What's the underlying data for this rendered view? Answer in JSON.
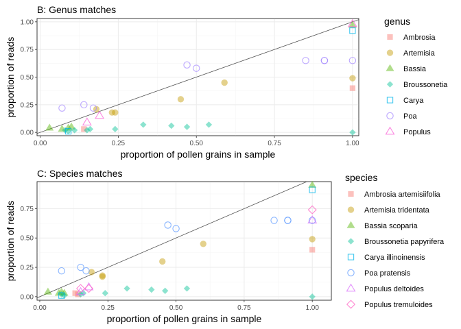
{
  "chart_data": [
    {
      "type": "scatter",
      "title": "B: Genus matches",
      "xlabel": "proportion of pollen grains in sample",
      "ylabel": "proportion of reads",
      "xlim": [
        -0.01,
        1.02
      ],
      "ylim": [
        -0.03,
        1.03
      ],
      "xticks": [
        "0.00",
        "0.25",
        "0.50",
        "0.75",
        "1.00"
      ],
      "yticks": [
        "0.00",
        "0.25",
        "0.50",
        "0.75",
        "1.00"
      ],
      "reference_line": "y = x",
      "grid": true,
      "legend_title": "genus",
      "legend_position": "right",
      "series": [
        {
          "name": "Ambrosia",
          "color": "#F8766D",
          "shape": "square-filled",
          "points": [
            [
              0.14,
              0.03
            ],
            [
              1.0,
              0.4
            ]
          ]
        },
        {
          "name": "Artemisia",
          "color": "#C49A00",
          "shape": "circle-filled",
          "points": [
            [
              0.18,
              0.21
            ],
            [
              0.24,
              0.18
            ],
            [
              0.23,
              0.18
            ],
            [
              0.45,
              0.3
            ],
            [
              0.59,
              0.45
            ],
            [
              1.0,
              0.49
            ]
          ]
        },
        {
          "name": "Bassia",
          "color": "#53B400",
          "shape": "triangle-filled",
          "points": [
            [
              0.03,
              0.04
            ],
            [
              0.07,
              0.03
            ],
            [
              0.09,
              0.04
            ],
            [
              0.1,
              0.05
            ],
            [
              1.0,
              0.97
            ]
          ]
        },
        {
          "name": "Broussonetia",
          "color": "#00C094",
          "shape": "diamond-filled",
          "points": [
            [
              0.08,
              0.02
            ],
            [
              0.09,
              0.01
            ],
            [
              0.11,
              0.02
            ],
            [
              0.15,
              0.02
            ],
            [
              0.16,
              0.03
            ],
            [
              0.24,
              0.03
            ],
            [
              0.33,
              0.07
            ],
            [
              0.42,
              0.06
            ],
            [
              0.47,
              0.05
            ],
            [
              0.54,
              0.07
            ],
            [
              1.0,
              0.0
            ]
          ]
        },
        {
          "name": "Carya",
          "color": "#00B6EB",
          "shape": "square-open",
          "points": [
            [
              0.09,
              0.01
            ],
            [
              1.0,
              0.92
            ]
          ]
        },
        {
          "name": "Poa",
          "color": "#A58AFF",
          "shape": "circle-open",
          "points": [
            [
              0.07,
              0.22
            ],
            [
              0.14,
              0.25
            ],
            [
              0.17,
              0.22
            ],
            [
              0.47,
              0.61
            ],
            [
              0.5,
              0.58
            ],
            [
              0.85,
              0.65
            ],
            [
              0.91,
              0.65
            ],
            [
              0.91,
              0.65
            ],
            [
              1.0,
              0.65
            ]
          ]
        },
        {
          "name": "Populus",
          "color": "#FB61D7",
          "shape": "triangle-open",
          "points": [
            [
              0.15,
              0.09
            ],
            [
              0.19,
              0.15
            ],
            [
              1.0,
              0.98
            ]
          ]
        }
      ]
    },
    {
      "type": "scatter",
      "title": "C: Species matches",
      "xlabel": "proportion of pollen grains in sample",
      "ylabel": "proportion of reads",
      "xlim": [
        -0.01,
        1.07
      ],
      "ylim": [
        -0.03,
        0.98
      ],
      "xticks": [
        "0.00",
        "0.25",
        "0.50",
        "0.75",
        "1.00"
      ],
      "yticks": [
        "0.00",
        "0.25",
        "0.50",
        "0.75"
      ],
      "reference_line": "y = x",
      "grid": true,
      "legend_title": "species",
      "legend_position": "right",
      "series": [
        {
          "name": "Ambrosia artemisiifolia",
          "color": "#F8766D",
          "shape": "square-filled",
          "points": [
            [
              0.13,
              0.03
            ],
            [
              0.14,
              0.02
            ],
            [
              1.0,
              0.4
            ]
          ]
        },
        {
          "name": "Artemisia tridentata",
          "color": "#C49A00",
          "shape": "circle-filled",
          "points": [
            [
              0.19,
              0.21
            ],
            [
              0.23,
              0.18
            ],
            [
              0.23,
              0.17
            ],
            [
              0.45,
              0.3
            ],
            [
              0.6,
              0.45
            ],
            [
              1.0,
              0.49
            ]
          ]
        },
        {
          "name": "Bassia scoparia",
          "color": "#53B400",
          "shape": "triangle-filled",
          "points": [
            [
              0.03,
              0.04
            ],
            [
              0.07,
              0.03
            ],
            [
              0.08,
              0.04
            ],
            [
              0.09,
              0.03
            ],
            [
              1.0,
              0.95
            ]
          ]
        },
        {
          "name": "Broussonetia papyrifera",
          "color": "#00C094",
          "shape": "diamond-filled",
          "points": [
            [
              0.08,
              0.02
            ],
            [
              0.09,
              0.01
            ],
            [
              0.15,
              0.02
            ],
            [
              0.16,
              0.03
            ],
            [
              0.24,
              0.03
            ],
            [
              0.32,
              0.07
            ],
            [
              0.41,
              0.06
            ],
            [
              0.46,
              0.05
            ],
            [
              0.54,
              0.07
            ],
            [
              1.0,
              0.0
            ]
          ]
        },
        {
          "name": "Carya illinoinensis",
          "color": "#00B6EB",
          "shape": "square-open",
          "points": [
            [
              0.08,
              0.01
            ],
            [
              1.0,
              0.91
            ]
          ]
        },
        {
          "name": "Poa pratensis",
          "color": "#619CFF",
          "shape": "circle-open",
          "points": [
            [
              0.08,
              0.22
            ],
            [
              0.15,
              0.25
            ],
            [
              0.17,
              0.22
            ],
            [
              0.47,
              0.61
            ],
            [
              0.5,
              0.58
            ],
            [
              0.86,
              0.65
            ],
            [
              0.91,
              0.65
            ],
            [
              0.91,
              0.65
            ],
            [
              1.0,
              0.65
            ]
          ]
        },
        {
          "name": "Populus deltoides",
          "color": "#DB72FB",
          "shape": "triangle-open",
          "points": [
            [
              0.15,
              0.04
            ],
            [
              0.18,
              0.08
            ],
            [
              1.0,
              0.65
            ]
          ]
        },
        {
          "name": "Populus tremuloides",
          "color": "#FF61C3",
          "shape": "diamond-open",
          "points": [
            [
              0.15,
              0.07
            ],
            [
              0.18,
              0.07
            ],
            [
              1.0,
              0.74
            ]
          ]
        }
      ]
    }
  ]
}
